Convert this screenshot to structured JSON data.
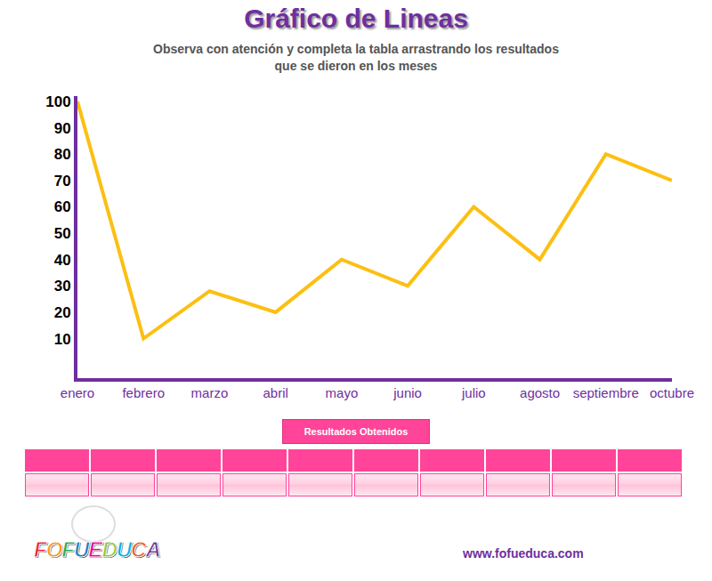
{
  "header": {
    "title": "Gráfico de Lineas",
    "subtitle": [
      "Observa con atención y completa la tabla arrastrando los resultados",
      "que se dieron en los meses"
    ]
  },
  "chart_data": {
    "type": "line",
    "categories": [
      "enero",
      "febrero",
      "marzo",
      "abril",
      "mayo",
      "junio",
      "julio",
      "agosto",
      "septiembre",
      "octubre"
    ],
    "values": [
      100,
      10,
      28,
      20,
      40,
      30,
      60,
      40,
      80,
      70
    ],
    "color": "#fcbf12",
    "ylim": [
      -5,
      102
    ],
    "yticks": [
      10,
      20,
      30,
      40,
      50,
      60,
      70,
      80,
      90,
      100
    ],
    "grid": false
  },
  "table": {
    "title": "Resultados Obtenidos"
  },
  "footer": {
    "logo": "FOFUEDUCA",
    "url": "www.fofueduca.com"
  }
}
